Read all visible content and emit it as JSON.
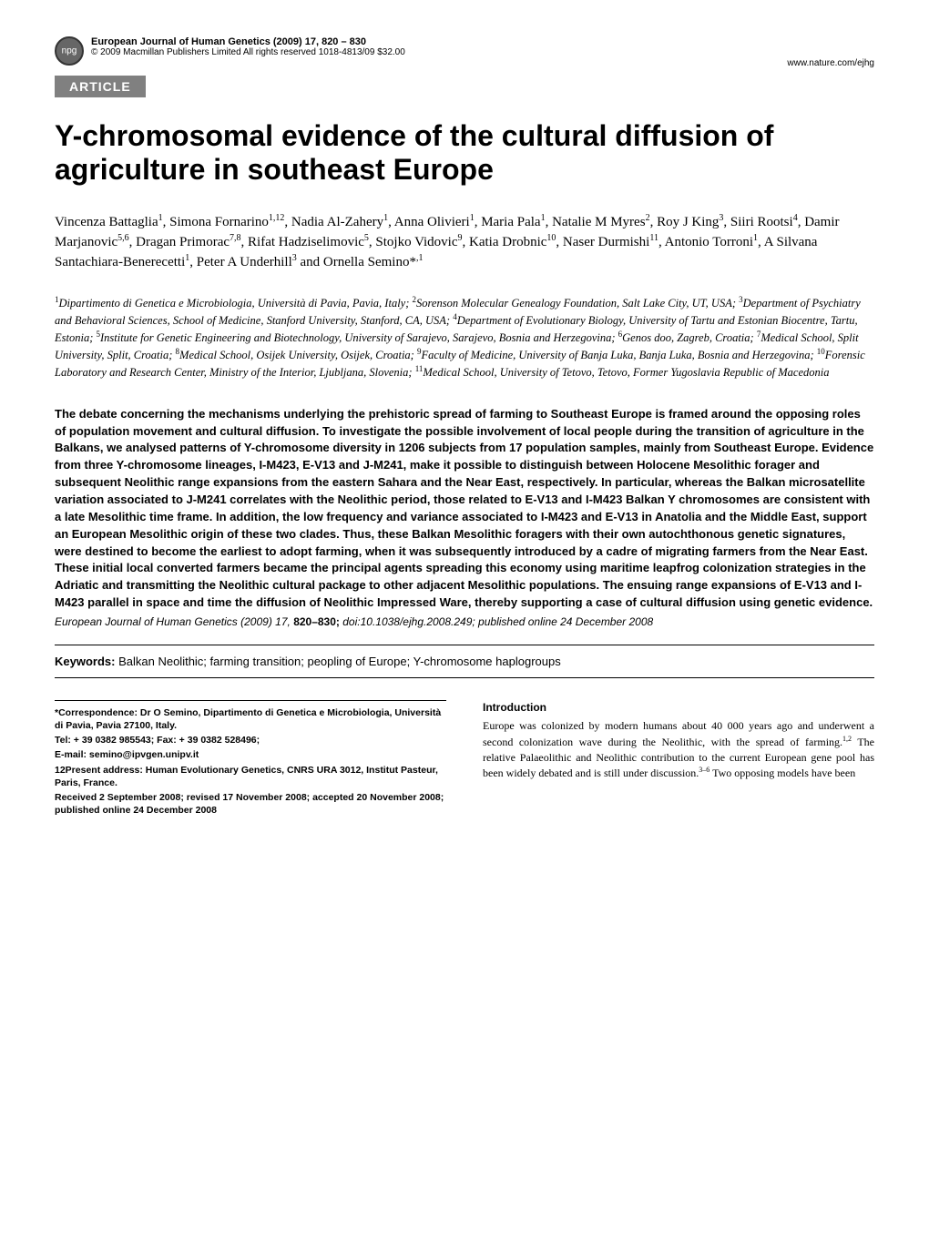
{
  "header": {
    "journal_line": "European Journal of Human Genetics (2009) 17, 820 – 830",
    "copyright_line": "© 2009 Macmillan Publishers Limited    All rights reserved 1018-4813/09 $32.00",
    "url": "www.nature.com/ejhg"
  },
  "badge": "ARTICLE",
  "title": "Y-chromosomal evidence of the cultural diffusion of agriculture in southeast Europe",
  "authors_html": "Vincenza Battaglia<sup>1</sup>, Simona Fornarino<sup>1,12</sup>, Nadia Al-Zahery<sup>1</sup>, Anna Olivieri<sup>1</sup>, Maria Pala<sup>1</sup>, Natalie M Myres<sup>2</sup>, Roy J King<sup>3</sup>, Siiri Rootsi<sup>4</sup>, Damir Marjanovic<sup>5,6</sup>, Dragan Primorac<sup>7,8</sup>, Rifat Hadziselimovic<sup>5</sup>, Stojko Vidovic<sup>9</sup>, Katia Drobnic<sup>10</sup>, Naser Durmishi<sup>11</sup>, Antonio Torroni<sup>1</sup>, A Silvana Santachiara-Benerecetti<sup>1</sup>, Peter A Underhill<sup>3</sup> and Ornella Semino*<sup>,1</sup>",
  "affiliations_html": "<sup>1</sup>Dipartimento di Genetica e Microbiologia, Università di Pavia, Pavia, Italy; <sup>2</sup>Sorenson Molecular Genealogy Foundation, Salt Lake City, UT, USA; <sup>3</sup>Department of Psychiatry and Behavioral Sciences, School of Medicine, Stanford University, Stanford, CA, USA; <sup>4</sup>Department of Evolutionary Biology, University of Tartu and Estonian Biocentre, Tartu, Estonia; <sup>5</sup>Institute for Genetic Engineering and Biotechnology, University of Sarajevo, Sarajevo, Bosnia and Herzegovina; <sup>6</sup>Genos doo, Zagreb, Croatia; <sup>7</sup>Medical School, Split University, Split, Croatia; <sup>8</sup>Medical School, Osijek University, Osijek, Croatia; <sup>9</sup>Faculty of Medicine, University of Banja Luka, Banja Luka, Bosnia and Herzegovina; <sup>10</sup>Forensic Laboratory and Research Center, Ministry of the Interior, Ljubljana, Slovenia; <sup>11</sup>Medical School, University of Tetovo, Tetovo, Former Yugoslavia Republic of Macedonia",
  "abstract": "The debate concerning the mechanisms underlying the prehistoric spread of farming to Southeast Europe is framed around the opposing roles of population movement and cultural diffusion. To investigate the possible involvement of local people during the transition of agriculture in the Balkans, we analysed patterns of Y-chromosome diversity in 1206 subjects from 17 population samples, mainly from Southeast Europe. Evidence from three Y-chromosome lineages, I-M423, E-V13 and J-M241, make it possible to distinguish between Holocene Mesolithic forager and subsequent Neolithic range expansions from the eastern Sahara and the Near East, respectively. In particular, whereas the Balkan microsatellite variation associated to J-M241 correlates with the Neolithic period, those related to E-V13 and I-M423 Balkan Y chromosomes are consistent with a late Mesolithic time frame. In addition, the low frequency and variance associated to I-M423 and E-V13 in Anatolia and the Middle East, support an European Mesolithic origin of these two clades. Thus, these Balkan Mesolithic foragers with their own autochthonous genetic signatures, were  destined to become the earliest to adopt farming, when it was subsequently introduced by a cadre of migrating farmers from the Near East. These initial local converted farmers became the principal agents spreading this economy using maritime leapfrog colonization strategies in the Adriatic and transmitting the Neolithic cultural package to other adjacent Mesolithic populations. The ensuing range expansions of E-V13 and I-M423 parallel in space and time the diffusion of Neolithic Impressed Ware, thereby supporting a case of cultural diffusion using genetic evidence.",
  "citation": {
    "journal": "European Journal of Human Genetics",
    "year_vol": "(2009) 17,",
    "pages": "820–830;",
    "doi": "doi:10.1038/ejhg.2008.249; published online 24 December 2008"
  },
  "keywords": {
    "label": "Keywords:",
    "text": "Balkan Neolithic; farming transition; peopling of Europe; Y-chromosome haplogroups"
  },
  "correspondence": {
    "line1": "*Correspondence: Dr O Semino, Dipartimento di Genetica e Microbiologia, Università di Pavia, Pavia 27100, Italy.",
    "tel": "Tel: + 39 0382 985543; Fax: + 39 0382 528496;",
    "email": "E-mail: semino@ipvgen.unipv.it",
    "present": "12Present address: Human Evolutionary Genetics, CNRS URA 3012, Institut Pasteur, Paris, France.",
    "received": "Received 2 September 2008; revised 17 November 2008; accepted 20 November 2008; published online 24 December 2008"
  },
  "introduction": {
    "heading": "Introduction",
    "body_html": "Europe was colonized by modern humans about 40 000 years ago and underwent a second colonization wave during the Neolithic, with the spread of farming.<sup>1,2</sup> The relative Palaeolithic and Neolithic contribution to the current European gene pool has been widely debated and is still under discussion.<sup>3–6</sup> Two opposing models have been"
  }
}
